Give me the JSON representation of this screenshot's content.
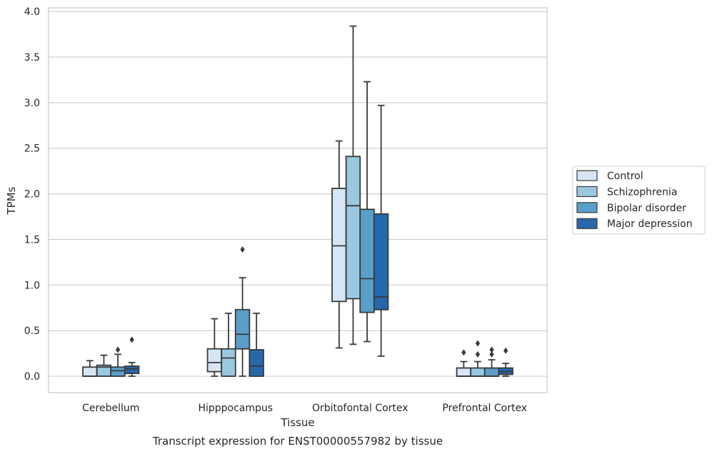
{
  "chart_data": {
    "type": "boxplot",
    "caption": "Transcript expression for ENST00000557982 by tissue",
    "xlabel": "Tissue",
    "ylabel": "TPMs",
    "ylim": [
      -0.18,
      4.04
    ],
    "yticks": [
      0.0,
      0.5,
      1.0,
      1.5,
      2.0,
      2.5,
      3.0,
      3.5,
      4.0
    ],
    "ytick_labels": [
      "0.0",
      "0.5",
      "1.0",
      "1.5",
      "2.0",
      "2.5",
      "3.0",
      "3.5",
      "4.0"
    ],
    "grid": "horizontal",
    "legend_position": "right",
    "categories": [
      "Cerebellum",
      "Hipppocampus",
      "Orbitofontal Cortex",
      "Prefrontal Cortex"
    ],
    "series": [
      {
        "name": "Control",
        "color": "#d6e6f4",
        "boxes": [
          {
            "whislo": 0.0,
            "q1": 0.0,
            "med": 0.0,
            "q3": 0.1,
            "whishi": 0.17,
            "fliers": []
          },
          {
            "whislo": 0.0,
            "q1": 0.05,
            "med": 0.15,
            "q3": 0.3,
            "whishi": 0.63,
            "fliers": []
          },
          {
            "whislo": 0.31,
            "q1": 0.82,
            "med": 1.43,
            "q3": 2.06,
            "whishi": 2.58,
            "fliers": []
          },
          {
            "whislo": 0.0,
            "q1": 0.0,
            "med": 0.0,
            "q3": 0.09,
            "whishi": 0.16,
            "fliers": [
              0.26
            ]
          }
        ]
      },
      {
        "name": "Schizophrenia",
        "color": "#9ac8e0",
        "boxes": [
          {
            "whislo": 0.0,
            "q1": 0.0,
            "med": 0.1,
            "q3": 0.12,
            "whishi": 0.23,
            "fliers": []
          },
          {
            "whislo": 0.0,
            "q1": 0.0,
            "med": 0.2,
            "q3": 0.3,
            "whishi": 0.69,
            "fliers": []
          },
          {
            "whislo": 0.35,
            "q1": 0.85,
            "med": 1.87,
            "q3": 2.41,
            "whishi": 3.84,
            "fliers": []
          },
          {
            "whislo": 0.0,
            "q1": 0.0,
            "med": 0.0,
            "q3": 0.09,
            "whishi": 0.16,
            "fliers": [
              0.24,
              0.36
            ]
          }
        ]
      },
      {
        "name": "Bipolar disorder",
        "color": "#5a9fca",
        "boxes": [
          {
            "whislo": 0.0,
            "q1": 0.0,
            "med": 0.06,
            "q3": 0.1,
            "whishi": 0.24,
            "fliers": [
              0.29
            ]
          },
          {
            "whislo": 0.0,
            "q1": 0.3,
            "med": 0.46,
            "q3": 0.73,
            "whishi": 1.08,
            "fliers": [
              1.39
            ]
          },
          {
            "whislo": 0.38,
            "q1": 0.7,
            "med": 1.07,
            "q3": 1.83,
            "whishi": 3.23,
            "fliers": []
          },
          {
            "whislo": 0.0,
            "q1": 0.0,
            "med": 0.0,
            "q3": 0.09,
            "whishi": 0.18,
            "fliers": [
              0.24,
              0.29
            ]
          }
        ]
      },
      {
        "name": "Major depression",
        "color": "#2767ab",
        "boxes": [
          {
            "whislo": 0.0,
            "q1": 0.03,
            "med": 0.08,
            "q3": 0.11,
            "whishi": 0.15,
            "fliers": [
              0.4
            ]
          },
          {
            "whislo": 0.0,
            "q1": 0.0,
            "med": 0.11,
            "q3": 0.29,
            "whishi": 0.69,
            "fliers": []
          },
          {
            "whislo": 0.22,
            "q1": 0.73,
            "med": 0.87,
            "q3": 1.78,
            "whishi": 2.97,
            "fliers": []
          },
          {
            "whislo": 0.0,
            "q1": 0.02,
            "med": 0.05,
            "q3": 0.09,
            "whishi": 0.14,
            "fliers": [
              0.28
            ]
          }
        ]
      }
    ]
  }
}
